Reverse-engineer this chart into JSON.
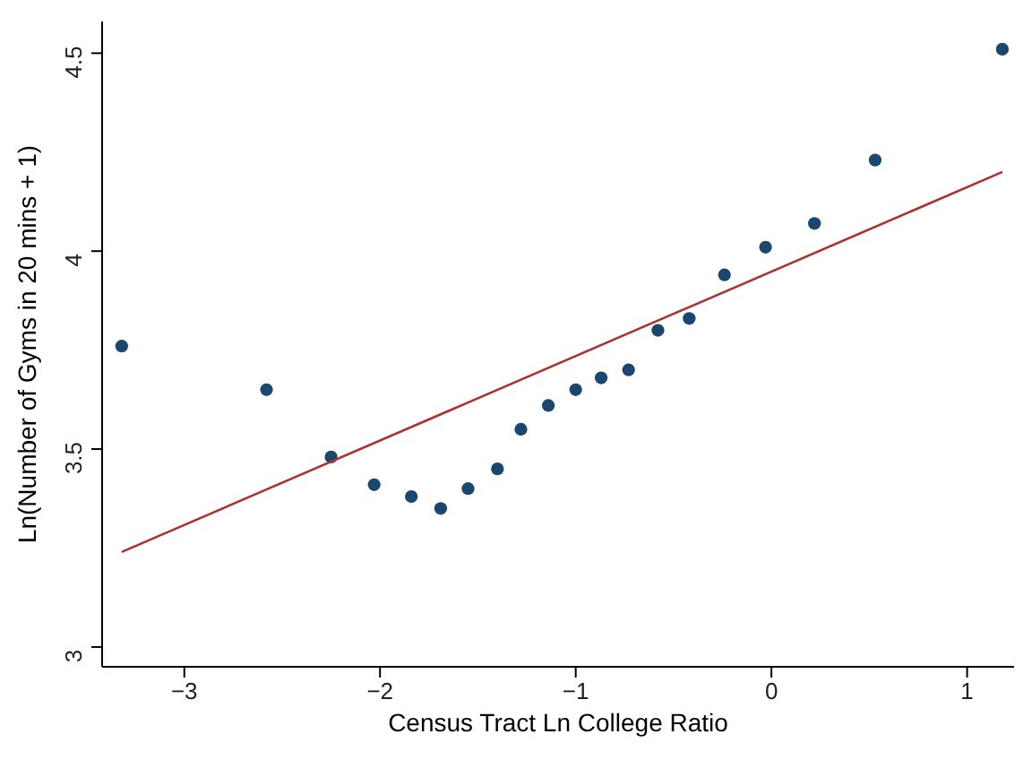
{
  "chart_data": {
    "type": "scatter",
    "xlabel": "Census Tract Ln College Ratio",
    "ylabel": "Ln(Number of Gyms in 20 mins + 1)",
    "xlim": [
      -3.42,
      1.24
    ],
    "ylim": [
      2.95,
      4.58
    ],
    "xticks": [
      -3,
      -2,
      -1,
      0,
      1
    ],
    "yticks": [
      3,
      3.5,
      4,
      4.5
    ],
    "grid": false,
    "marker": "circle",
    "series": [
      {
        "color": "#1a476f",
        "x": [
          -3.32,
          -2.58,
          -2.25,
          -2.03,
          -1.84,
          -1.69,
          -1.55,
          -1.4,
          -1.28,
          -1.14,
          -1,
          -0.87,
          -0.73,
          -0.58,
          -0.42,
          -0.24,
          -0.03,
          0.22,
          0.53,
          1.18
        ],
        "values": [
          3.76,
          3.65,
          3.48,
          3.41,
          3.38,
          3.35,
          3.4,
          3.45,
          3.55,
          3.61,
          3.65,
          3.68,
          3.7,
          3.8,
          3.83,
          3.94,
          4.01,
          4.07,
          4.23,
          4.51
        ]
      },
      {
        "type": "line",
        "marker": "none",
        "color": "#b03030",
        "x": [
          -3.32,
          1.18
        ],
        "values": [
          3.24,
          4.2
        ]
      }
    ]
  }
}
